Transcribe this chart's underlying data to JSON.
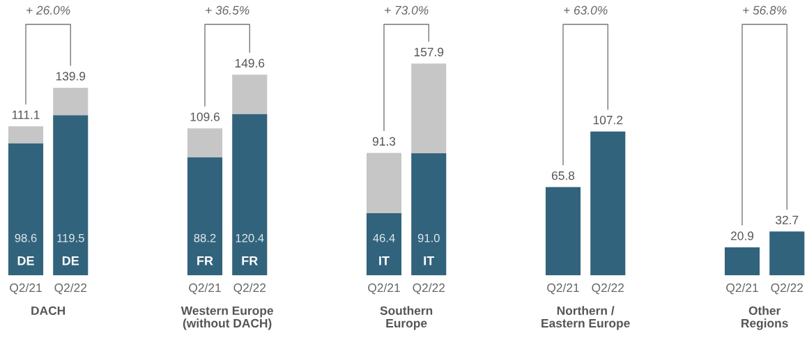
{
  "chart_data": [
    {
      "type": "bar",
      "stacked": true,
      "categories": [
        "Q2/21",
        "Q2/22"
      ],
      "xlabel": "DACH",
      "series": [
        {
          "color": "#32637c",
          "values": [
            98.6,
            119.5
          ],
          "value_labels": [
            "98.6",
            "119.5"
          ]
        },
        {
          "color": "#c6c6c6",
          "values": [
            12.5,
            20.4
          ]
        }
      ],
      "totals": [
        "111.1",
        "139.9"
      ],
      "annotations": [
        "+ 26.0%",
        "DE",
        "DE"
      ]
    },
    {
      "type": "bar",
      "stacked": true,
      "categories": [
        "Q2/21",
        "Q2/22"
      ],
      "xlabel": "Western Europe\n(without DACH)",
      "series": [
        {
          "color": "#32637c",
          "values": [
            88.2,
            120.4
          ],
          "value_labels": [
            "88.2",
            "120.4"
          ]
        },
        {
          "color": "#c6c6c6",
          "values": [
            21.4,
            29.2
          ]
        }
      ],
      "totals": [
        "109.6",
        "149.6"
      ],
      "annotations": [
        "+ 36.5%",
        "FR",
        "FR"
      ]
    },
    {
      "type": "bar",
      "stacked": true,
      "categories": [
        "Q2/21",
        "Q2/22"
      ],
      "xlabel": "Southern\nEurope",
      "series": [
        {
          "color": "#32637c",
          "values": [
            46.4,
            91.0
          ],
          "value_labels": [
            "46.4",
            "91.0"
          ]
        },
        {
          "color": "#c6c6c6",
          "values": [
            44.9,
            66.9
          ]
        }
      ],
      "totals": [
        "91.3",
        "157.9"
      ],
      "annotations": [
        "+ 73.0%",
        "IT",
        "IT"
      ]
    },
    {
      "type": "bar",
      "categories": [
        "Q2/21",
        "Q2/22"
      ],
      "xlabel": "Northern /\nEastern Europe",
      "series": [
        {
          "color": "#32637c",
          "values": [
            65.8,
            107.2
          ]
        }
      ],
      "data_labels": true,
      "annotations": [
        "+ 63.0%"
      ]
    },
    {
      "type": "bar",
      "categories": [
        "Q2/21",
        "Q2/22"
      ],
      "xlabel": "Other\nRegions",
      "series": [
        {
          "color": "#32637c",
          "values": [
            20.9,
            32.7
          ]
        }
      ],
      "data_labels": true,
      "annotations": [
        "+ 56.8%"
      ]
    }
  ]
}
